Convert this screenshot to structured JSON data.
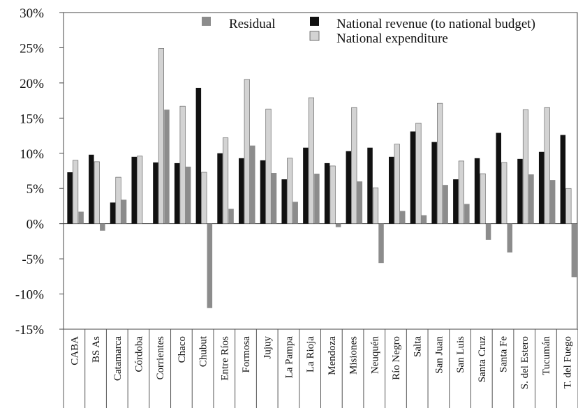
{
  "chart_data": {
    "type": "bar",
    "title": "",
    "xlabel": "",
    "ylabel": "",
    "ylim": [
      -15,
      30
    ],
    "yticks": [
      "-15%",
      "-10%",
      "-5%",
      "0%",
      "5%",
      "10%",
      "15%",
      "20%",
      "25%",
      "30%"
    ],
    "grid": false,
    "legend_position": "top-right",
    "categories": [
      "CABA",
      "BS As",
      "Catamarca",
      "Córdoba",
      "Corrientes",
      "Chaco",
      "Chubut",
      "Entre Ríos",
      "Formosa",
      "Jujuy",
      "La Pampa",
      "La Rioja",
      "Mendoza",
      "Misiones",
      "Neuquén",
      "Río Negro",
      "Salta",
      "San Juan",
      "San Luis",
      "Santa Cruz",
      "Santa Fe",
      "S. del Estero",
      "Tucumán",
      "T. del Fuego"
    ],
    "series": [
      {
        "name": "National revenue (to national budget)",
        "color": "#111111",
        "values": [
          7.3,
          9.8,
          3.0,
          9.5,
          8.7,
          8.6,
          19.3,
          10.0,
          9.3,
          9.0,
          6.3,
          10.8,
          8.6,
          10.3,
          10.8,
          9.5,
          13.1,
          11.6,
          6.3,
          9.3,
          12.9,
          9.2,
          10.2,
          12.6
        ]
      },
      {
        "name": "National expenditure",
        "color": "#d3d3d3",
        "values": [
          9.0,
          8.8,
          6.6,
          9.6,
          24.9,
          16.7,
          7.3,
          12.2,
          20.5,
          16.3,
          9.3,
          17.9,
          8.2,
          16.5,
          5.1,
          11.3,
          14.3,
          17.1,
          8.9,
          7.1,
          8.7,
          16.2,
          16.5,
          5.0
        ]
      },
      {
        "name": "Residual",
        "color": "#8c8c8c",
        "values": [
          1.7,
          -1.0,
          3.4,
          0.0,
          16.2,
          8.1,
          -12.0,
          2.1,
          11.1,
          7.2,
          3.1,
          7.1,
          -0.5,
          6.0,
          -5.6,
          1.8,
          1.2,
          5.5,
          2.8,
          -2.3,
          -4.1,
          7.0,
          6.2,
          -7.6
        ]
      }
    ]
  }
}
